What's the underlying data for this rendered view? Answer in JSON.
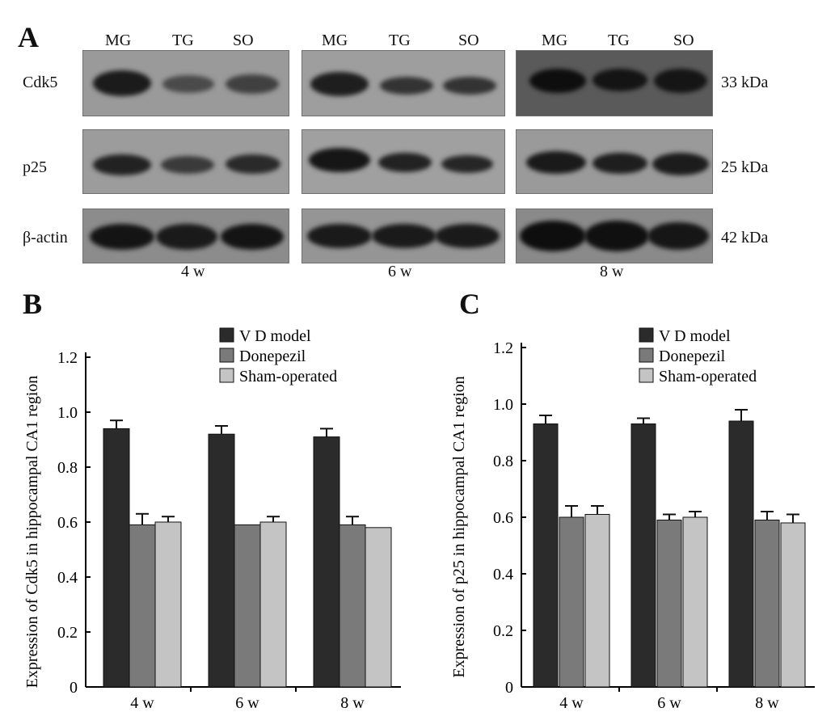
{
  "panel_a": {
    "letter": "A",
    "lanes": [
      "MG",
      "TG",
      "SO"
    ],
    "rows": [
      {
        "label": "Cdk5",
        "kda": "33 kDa"
      },
      {
        "label": "p25",
        "kda": "25 kDa"
      },
      {
        "label": "β-actin",
        "kda": "42 kDa"
      }
    ],
    "timepoints": [
      "4 w",
      "6 w",
      "8 w"
    ]
  },
  "chart_data": [
    {
      "panel": "B",
      "type": "bar",
      "ylabel": "Expression of Cdk5 in hippocampal CA1 region",
      "xlabel": "",
      "categories": [
        "4 w",
        "6 w",
        "8 w"
      ],
      "ylim": [
        0,
        1.2
      ],
      "yticks": [
        "0",
        "0.2",
        "0.4",
        "0.6",
        "0.8",
        "1.0",
        "1.2"
      ],
      "legend_position": "top-right",
      "series": [
        {
          "name": "V D model",
          "color": "#2b2b2b",
          "values": [
            0.94,
            0.92,
            0.91
          ],
          "errors": [
            0.03,
            0.03,
            0.03
          ]
        },
        {
          "name": "Donepezil",
          "color": "#7a7a7a",
          "values": [
            0.59,
            0.59,
            0.59
          ],
          "errors": [
            0.04,
            0.0,
            0.03
          ]
        },
        {
          "name": "Sham-operated",
          "color": "#c4c4c4",
          "values": [
            0.6,
            0.6,
            0.58
          ],
          "errors": [
            0.02,
            0.02,
            0.0
          ]
        }
      ]
    },
    {
      "panel": "C",
      "type": "bar",
      "ylabel": "Expression of p25 in hippocampal CA1 region",
      "xlabel": "",
      "categories": [
        "4 w",
        "6 w",
        "8 w"
      ],
      "ylim": [
        0,
        1.2
      ],
      "yticks": [
        "0",
        "0.2",
        "0.4",
        "0.6",
        "0.8",
        "1.0",
        "1.2"
      ],
      "legend_position": "top-right",
      "series": [
        {
          "name": "V D model",
          "color": "#2b2b2b",
          "values": [
            0.93,
            0.93,
            0.94
          ],
          "errors": [
            0.03,
            0.02,
            0.04
          ]
        },
        {
          "name": "Donepezil",
          "color": "#7a7a7a",
          "values": [
            0.6,
            0.59,
            0.59
          ],
          "errors": [
            0.04,
            0.02,
            0.03
          ]
        },
        {
          "name": "Sham-operated",
          "color": "#c4c4c4",
          "values": [
            0.61,
            0.6,
            0.58
          ],
          "errors": [
            0.03,
            0.02,
            0.03
          ]
        }
      ]
    }
  ]
}
